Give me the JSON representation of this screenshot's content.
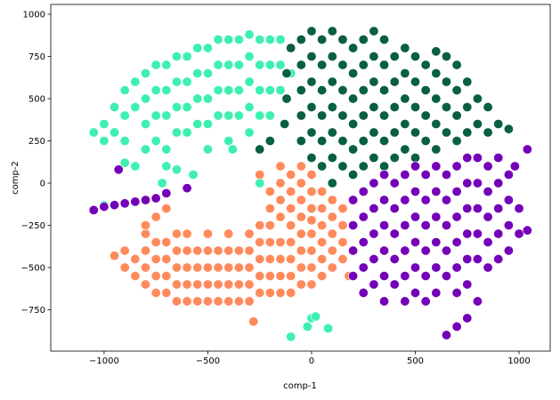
{
  "chart_data": {
    "type": "scatter",
    "x_label": "comp-1",
    "y_label": "comp-2",
    "xlim": [
      -1257,
      1150
    ],
    "ylim": [
      -995,
      1058
    ],
    "xticks": [
      {
        "value": -1000,
        "label": "−1000"
      },
      {
        "value": -500,
        "label": "−500"
      },
      0,
      500,
      1000
    ],
    "yticks": [
      {
        "value": -750,
        "label": "−750"
      },
      {
        "value": -500,
        "label": "−500"
      },
      {
        "value": -250,
        "label": "−250"
      },
      0,
      250,
      500,
      750,
      1000
    ],
    "series": [
      {
        "color": "#3ef0b0",
        "x": [
          -1050,
          -1000,
          -1000,
          -950,
          -950,
          -900,
          -900,
          -900,
          -850,
          -850,
          -800,
          -800,
          -800,
          -800,
          -750,
          -750,
          -750,
          -750,
          -700,
          -700,
          -700,
          -700,
          -700,
          -650,
          -650,
          -650,
          -650,
          -600,
          -600,
          -600,
          -600,
          -550,
          -550,
          -550,
          -550,
          -500,
          -500,
          -500,
          -500,
          -500,
          -450,
          -450,
          -450,
          -450,
          -400,
          -400,
          -400,
          -400,
          -400,
          -350,
          -350,
          -350,
          -350,
          -300,
          -300,
          -300,
          -300,
          -300,
          -250,
          -250,
          -250,
          -250,
          -200,
          -200,
          -200,
          -200,
          -150,
          -150,
          -150,
          -100,
          -100,
          -900,
          -850,
          -650,
          -720,
          -570,
          -380,
          -250,
          -1000,
          -100,
          -20,
          0,
          80,
          20
        ],
        "y": [
          300,
          350,
          250,
          450,
          300,
          550,
          400,
          250,
          600,
          450,
          650,
          500,
          350,
          200,
          700,
          550,
          400,
          250,
          700,
          550,
          400,
          200,
          100,
          750,
          600,
          450,
          300,
          750,
          600,
          450,
          300,
          800,
          650,
          500,
          350,
          800,
          650,
          500,
          350,
          200,
          850,
          700,
          550,
          400,
          850,
          700,
          550,
          400,
          250,
          850,
          700,
          550,
          400,
          880,
          750,
          600,
          450,
          300,
          850,
          700,
          550,
          400,
          850,
          700,
          550,
          400,
          850,
          700,
          550,
          800,
          650,
          120,
          100,
          80,
          0,
          50,
          200,
          0,
          -130,
          -910,
          -850,
          -800,
          -860,
          -790
        ]
      },
      {
        "color": "#08603e",
        "x": [
          -130,
          -120,
          -120,
          -100,
          -50,
          -50,
          -50,
          -50,
          -50,
          0,
          0,
          0,
          0,
          0,
          0,
          50,
          50,
          50,
          50,
          50,
          50,
          100,
          100,
          100,
          100,
          100,
          100,
          100,
          150,
          150,
          150,
          150,
          150,
          150,
          200,
          200,
          200,
          200,
          200,
          200,
          250,
          250,
          250,
          250,
          250,
          250,
          300,
          300,
          300,
          300,
          300,
          300,
          350,
          350,
          350,
          350,
          350,
          350,
          400,
          400,
          400,
          400,
          400,
          450,
          450,
          450,
          450,
          450,
          500,
          500,
          500,
          500,
          500,
          550,
          550,
          550,
          550,
          600,
          600,
          600,
          600,
          600,
          650,
          650,
          650,
          650,
          700,
          700,
          700,
          700,
          750,
          750,
          750,
          800,
          800,
          850,
          850,
          900,
          950,
          -200,
          -250
        ],
        "y": [
          350,
          500,
          650,
          800,
          250,
          400,
          550,
          700,
          850,
          150,
          300,
          450,
          600,
          750,
          900,
          100,
          250,
          400,
          550,
          700,
          850,
          0,
          150,
          300,
          450,
          600,
          750,
          900,
          100,
          250,
          400,
          550,
          700,
          850,
          50,
          200,
          350,
          500,
          650,
          800,
          100,
          250,
          400,
          550,
          700,
          850,
          150,
          300,
          450,
          600,
          750,
          900,
          100,
          250,
          400,
          550,
          700,
          850,
          150,
          300,
          450,
          600,
          750,
          200,
          350,
          500,
          650,
          800,
          150,
          300,
          450,
          600,
          750,
          250,
          400,
          550,
          700,
          200,
          350,
          500,
          650,
          780,
          300,
          450,
          600,
          750,
          250,
          400,
          550,
          700,
          300,
          450,
          600,
          350,
          500,
          300,
          450,
          350,
          320,
          250,
          200
        ]
      },
      {
        "color": "#ff8a5c",
        "x": [
          -250,
          -200,
          -200,
          -150,
          -150,
          -150,
          -150,
          -100,
          -100,
          -100,
          -50,
          -50,
          -50,
          -50,
          0,
          0,
          0,
          50,
          50,
          100,
          100,
          150,
          -950,
          -900,
          -900,
          -850,
          -850,
          -800,
          -800,
          -800,
          -800,
          -750,
          -750,
          -750,
          -750,
          -700,
          -700,
          -700,
          -700,
          -650,
          -650,
          -650,
          -650,
          -650,
          -600,
          -600,
          -600,
          -600,
          -600,
          -550,
          -550,
          -550,
          -550,
          -500,
          -500,
          -500,
          -500,
          -500,
          -450,
          -450,
          -450,
          -450,
          -400,
          -400,
          -400,
          -400,
          -400,
          -350,
          -350,
          -350,
          -350,
          -300,
          -300,
          -300,
          -300,
          -300,
          -250,
          -250,
          -250,
          -250,
          -250,
          -200,
          -200,
          -200,
          -200,
          -200,
          -150,
          -150,
          -150,
          -150,
          -100,
          -100,
          -100,
          -100,
          -100,
          -50,
          -50,
          -50,
          -50,
          0,
          0,
          0,
          0,
          0,
          50,
          50,
          50,
          50,
          100,
          100,
          100,
          150,
          150,
          150,
          180,
          -750,
          -700,
          -800,
          -280
        ],
        "y": [
          50,
          -50,
          -150,
          100,
          0,
          -100,
          -200,
          50,
          -50,
          -150,
          100,
          0,
          -100,
          -200,
          50,
          -50,
          -150,
          -50,
          -150,
          -100,
          -200,
          -150,
          -430,
          -500,
          -400,
          -550,
          -450,
          -600,
          -500,
          -400,
          -300,
          -650,
          -550,
          -450,
          -350,
          -650,
          -550,
          -450,
          -350,
          -700,
          -600,
          -500,
          -400,
          -300,
          -700,
          -600,
          -500,
          -400,
          -300,
          -700,
          -600,
          -500,
          -400,
          -700,
          -600,
          -500,
          -400,
          -300,
          -700,
          -600,
          -500,
          -400,
          -700,
          -600,
          -500,
          -400,
          -300,
          -700,
          -600,
          -500,
          -400,
          -700,
          -600,
          -500,
          -400,
          -300,
          -650,
          -550,
          -450,
          -350,
          -250,
          -650,
          -550,
          -450,
          -350,
          -250,
          -650,
          -550,
          -450,
          -350,
          -650,
          -550,
          -450,
          -350,
          -250,
          -600,
          -500,
          -400,
          -300,
          -600,
          -500,
          -400,
          -300,
          -220,
          -550,
          -450,
          -350,
          -250,
          -500,
          -400,
          -300,
          -450,
          -350,
          -250,
          -550,
          -200,
          -150,
          -250,
          -820
        ]
      },
      {
        "color": "#7400b8",
        "x": [
          -1050,
          -1000,
          -950,
          -900,
          -850,
          -800,
          -750,
          -700,
          -600,
          -930,
          200,
          200,
          200,
          200,
          250,
          250,
          250,
          250,
          250,
          300,
          300,
          300,
          300,
          300,
          350,
          350,
          350,
          350,
          350,
          350,
          400,
          400,
          400,
          400,
          400,
          450,
          450,
          450,
          450,
          450,
          450,
          500,
          500,
          500,
          500,
          500,
          500,
          550,
          550,
          550,
          550,
          550,
          550,
          600,
          600,
          600,
          600,
          600,
          600,
          650,
          650,
          650,
          650,
          650,
          650,
          700,
          700,
          700,
          700,
          700,
          700,
          700,
          750,
          750,
          750,
          750,
          750,
          750,
          750,
          800,
          800,
          800,
          800,
          800,
          800,
          850,
          850,
          850,
          850,
          850,
          900,
          900,
          900,
          900,
          900,
          950,
          950,
          950,
          950,
          1000,
          1000,
          1040,
          1040,
          980
        ],
        "y": [
          -160,
          -140,
          -130,
          -120,
          -110,
          -100,
          -90,
          -60,
          -30,
          80,
          -100,
          -250,
          -400,
          -550,
          -50,
          -200,
          -350,
          -500,
          -650,
          0,
          -150,
          -300,
          -450,
          -600,
          50,
          -100,
          -250,
          -400,
          -550,
          -700,
          0,
          -150,
          -300,
          -450,
          -600,
          50,
          -100,
          -250,
          -400,
          -550,
          -700,
          100,
          -50,
          -200,
          -350,
          -500,
          -650,
          50,
          -100,
          -250,
          -400,
          -550,
          -700,
          100,
          -50,
          -200,
          -350,
          -500,
          -650,
          50,
          -100,
          -250,
          -400,
          -550,
          -900,
          100,
          -50,
          -200,
          -350,
          -500,
          -650,
          -850,
          150,
          0,
          -150,
          -300,
          -450,
          -600,
          -800,
          150,
          0,
          -150,
          -300,
          -450,
          -700,
          100,
          -50,
          -200,
          -350,
          -500,
          150,
          0,
          -150,
          -300,
          -450,
          50,
          -100,
          -250,
          -400,
          -150,
          -300,
          200,
          -280,
          100
        ]
      }
    ]
  }
}
